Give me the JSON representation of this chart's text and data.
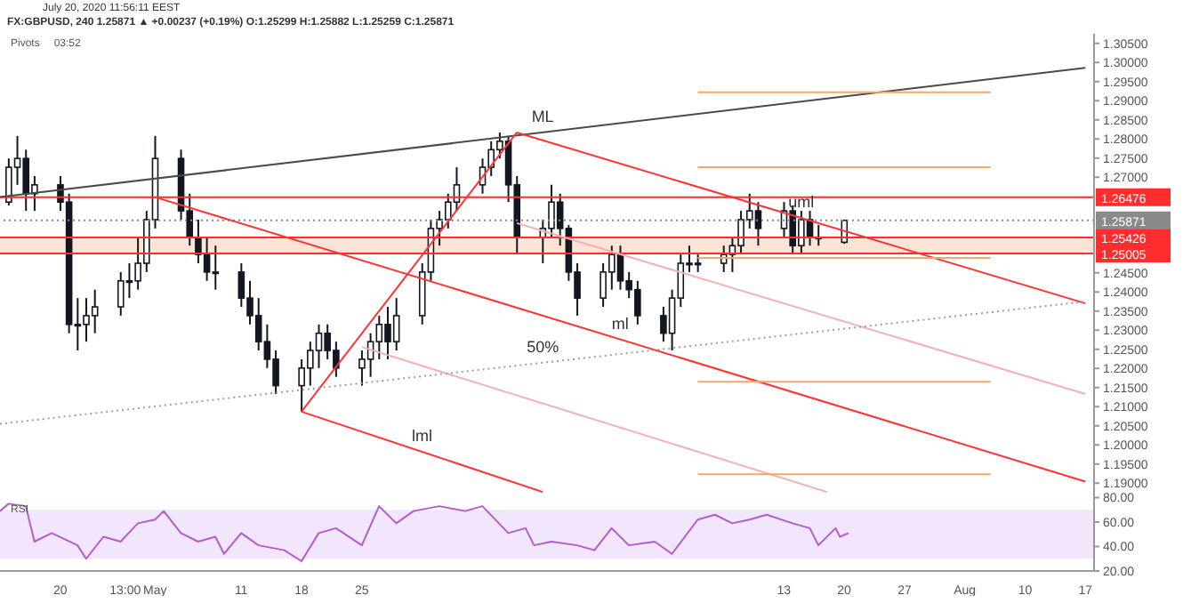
{
  "chart_data": [
    {
      "type": "candlestick",
      "title": "FX:GBPUSD, 240  1.25871 ▲ +0.00237 (+0.19%) O:1.25299 H:1.25882 L:1.25259 C:1.25871",
      "subtitle": "July 20, 2020 11:56:11 EEST",
      "color": "#131722",
      "x": [
        "2020-04-14",
        "2020-04-15",
        "2020-04-16",
        "2020-04-17",
        "2020-04-20",
        "2020-04-21",
        "2020-04-22",
        "2020-04-23",
        "2020-04-24",
        "2020-04-27",
        "2020-04-28",
        "2020-04-29",
        "2020-04-30",
        "2020-05-01",
        "2020-05-04",
        "2020-05-05",
        "2020-05-06",
        "2020-05-07",
        "2020-05-08",
        "2020-05-11",
        "2020-05-12",
        "2020-05-13",
        "2020-05-14",
        "2020-05-15",
        "2020-05-18",
        "2020-05-19",
        "2020-05-20",
        "2020-05-21",
        "2020-05-22",
        "2020-05-25",
        "2020-05-26",
        "2020-05-27",
        "2020-05-28",
        "2020-05-29",
        "2020-06-01",
        "2020-06-02",
        "2020-06-03",
        "2020-06-04",
        "2020-06-05",
        "2020-06-08",
        "2020-06-09",
        "2020-06-10",
        "2020-06-11",
        "2020-06-12",
        "2020-06-15",
        "2020-06-16",
        "2020-06-17",
        "2020-06-18",
        "2020-06-19",
        "2020-06-22",
        "2020-06-23",
        "2020-06-24",
        "2020-06-25",
        "2020-06-26",
        "2020-06-29",
        "2020-06-30",
        "2020-07-01",
        "2020-07-02",
        "2020-07-03",
        "2020-07-06",
        "2020-07-07",
        "2020-07-08",
        "2020-07-09",
        "2020-07-10",
        "2020-07-13",
        "2020-07-14",
        "2020-07-15",
        "2020-07-16",
        "2020-07-17",
        "2020-07-20"
      ],
      "ohlc": [
        [
          1.2635,
          1.2749,
          1.2626,
          1.2726
        ],
        [
          1.2726,
          1.2808,
          1.268,
          1.2749
        ],
        [
          1.2749,
          1.2772,
          1.2612,
          1.2657
        ],
        [
          1.2657,
          1.2703,
          1.2612,
          1.268
        ],
        [
          1.268,
          1.2703,
          1.2612,
          1.2635
        ],
        [
          1.2635,
          1.2657,
          1.2292,
          1.2315
        ],
        [
          1.2315,
          1.2384,
          1.2247,
          1.2315
        ],
        [
          1.2315,
          1.2384,
          1.227,
          1.2338
        ],
        [
          1.2338,
          1.2406,
          1.2292,
          1.2361
        ],
        [
          1.2361,
          1.2452,
          1.2338,
          1.2429
        ],
        [
          1.2429,
          1.2475,
          1.2384,
          1.2429
        ],
        [
          1.2429,
          1.2543,
          1.2406,
          1.2475
        ],
        [
          1.2475,
          1.2612,
          1.2452,
          1.2589
        ],
        [
          1.2589,
          1.2808,
          1.2566,
          1.2749
        ],
        [
          1.2749,
          1.2772,
          1.2589,
          1.2612
        ],
        [
          1.2612,
          1.2657,
          1.2521,
          1.2543
        ],
        [
          1.2543,
          1.2589,
          1.2475,
          1.2498
        ],
        [
          1.2498,
          1.2543,
          1.2429,
          1.2452
        ],
        [
          1.2452,
          1.2521,
          1.2406,
          1.2452
        ],
        [
          1.2452,
          1.2475,
          1.2361,
          1.2384
        ],
        [
          1.2384,
          1.2429,
          1.2315,
          1.2338
        ],
        [
          1.2338,
          1.2384,
          1.2247,
          1.227
        ],
        [
          1.227,
          1.2315,
          1.2201,
          1.2224
        ],
        [
          1.2224,
          1.2247,
          1.2133,
          1.2155
        ],
        [
          1.2155,
          1.2224,
          1.2087,
          1.2201
        ],
        [
          1.2201,
          1.227,
          1.2155,
          1.2247
        ],
        [
          1.2247,
          1.2315,
          1.2201,
          1.2292
        ],
        [
          1.2292,
          1.2315,
          1.2224,
          1.2247
        ],
        [
          1.2247,
          1.227,
          1.2178,
          1.2201
        ],
        [
          1.2201,
          1.2247,
          1.2155,
          1.2224
        ],
        [
          1.2224,
          1.2292,
          1.2178,
          1.227
        ],
        [
          1.227,
          1.2338,
          1.2224,
          1.2315
        ],
        [
          1.2315,
          1.2361,
          1.2224,
          1.227
        ],
        [
          1.227,
          1.2384,
          1.2247,
          1.2338
        ],
        [
          1.2338,
          1.2475,
          1.2315,
          1.2452
        ],
        [
          1.2452,
          1.2589,
          1.2429,
          1.2566
        ],
        [
          1.2566,
          1.2612,
          1.2521,
          1.2589
        ],
        [
          1.2589,
          1.2657,
          1.2566,
          1.2635
        ],
        [
          1.2635,
          1.2726,
          1.2612,
          1.268
        ],
        [
          1.268,
          1.2749,
          1.2657,
          1.2726
        ],
        [
          1.2726,
          1.2794,
          1.2703,
          1.2772
        ],
        [
          1.2772,
          1.2817,
          1.2749,
          1.2794
        ],
        [
          1.2794,
          1.2808,
          1.2635,
          1.268
        ],
        [
          1.268,
          1.2703,
          1.2498,
          1.2543
        ],
        [
          1.2543,
          1.2589,
          1.2475,
          1.2566
        ],
        [
          1.2566,
          1.268,
          1.2543,
          1.2635
        ],
        [
          1.2635,
          1.2657,
          1.2521,
          1.2566
        ],
        [
          1.2566,
          1.2575,
          1.2429,
          1.2452
        ],
        [
          1.2452,
          1.2475,
          1.2338,
          1.2384
        ],
        [
          1.2384,
          1.2475,
          1.2361,
          1.2452
        ],
        [
          1.2452,
          1.2521,
          1.2406,
          1.2498
        ],
        [
          1.2498,
          1.2521,
          1.2406,
          1.2429
        ],
        [
          1.2429,
          1.2452,
          1.2384,
          1.2406
        ],
        [
          1.2406,
          1.2429,
          1.2315,
          1.2338
        ],
        [
          1.2338,
          1.2361,
          1.227,
          1.2292
        ],
        [
          1.2292,
          1.2406,
          1.2247,
          1.2384
        ],
        [
          1.2384,
          1.2498,
          1.2361,
          1.2475
        ],
        [
          1.2475,
          1.2521,
          1.2452,
          1.2475
        ],
        [
          1.2475,
          1.2498,
          1.2452,
          1.2475
        ],
        [
          1.2475,
          1.2521,
          1.2452,
          1.2498
        ],
        [
          1.2498,
          1.2543,
          1.2452,
          1.2521
        ],
        [
          1.2521,
          1.2612,
          1.2498,
          1.2589
        ],
        [
          1.2589,
          1.2657,
          1.2566,
          1.2612
        ],
        [
          1.2612,
          1.2635,
          1.2521,
          1.2566
        ],
        [
          1.2566,
          1.2635,
          1.2543,
          1.2612
        ],
        [
          1.2612,
          1.2626,
          1.2498,
          1.2521
        ],
        [
          1.2521,
          1.2612,
          1.2498,
          1.2589
        ],
        [
          1.2589,
          1.2612,
          1.2521,
          1.2543
        ],
        [
          1.2543,
          1.2575,
          1.2521,
          1.2543
        ],
        [
          1.25299,
          1.25882,
          1.25259,
          1.25871
        ]
      ],
      "series": [
        {
          "type": "line",
          "name": "ML",
          "color": "#4a4a4a",
          "x": [
            "2020-04-13",
            "2020-08-17"
          ],
          "values": [
            1.2648,
            1.2986
          ]
        },
        {
          "type": "line",
          "name": "uml",
          "color": "#ff3333",
          "x": [
            "2020-06-12",
            "2020-08-17"
          ],
          "values": [
            1.2817,
            1.237
          ]
        },
        {
          "type": "line",
          "name": "ml",
          "color": "#ff3333",
          "x": [
            "2020-05-01",
            "2020-08-17"
          ],
          "values": [
            1.2648,
            1.1904
          ]
        },
        {
          "type": "line",
          "name": "lml",
          "color": "#ff3333",
          "x": [
            "2020-05-18",
            "2020-06-15"
          ],
          "values": [
            1.2087,
            1.1877
          ]
        },
        {
          "type": "line",
          "color": "#ff3333",
          "x": [
            "2020-05-18",
            "2020-06-12"
          ],
          "values": [
            1.2087,
            1.2817
          ]
        },
        {
          "type": "line",
          "color": "#f7b0b0",
          "x": [
            "2020-06-12",
            "2020-08-17"
          ],
          "values": [
            1.258,
            1.2133
          ]
        },
        {
          "type": "line",
          "color": "#f7b0b0",
          "x": [
            "2020-05-25",
            "2020-07-18"
          ],
          "values": [
            1.2256,
            1.1877
          ]
        },
        {
          "type": "line",
          "name": "50%",
          "color": "#9e9e9e",
          "line_style": "dotted",
          "x": [
            "2020-04-13",
            "2020-08-17"
          ],
          "values": [
            1.2055,
            1.2375
          ]
        },
        {
          "type": "line",
          "color": "#f5a66b",
          "x": [
            "2020-07-03",
            "2020-08-06"
          ],
          "values": [
            1.2922,
            1.2922
          ]
        },
        {
          "type": "line",
          "color": "#f5a66b",
          "x": [
            "2020-07-03",
            "2020-08-06"
          ],
          "values": [
            1.2726,
            1.2726
          ]
        },
        {
          "type": "line",
          "color": "#f5a66b",
          "x": [
            "2020-07-03",
            "2020-08-06"
          ],
          "values": [
            1.2489,
            1.2489
          ]
        },
        {
          "type": "line",
          "color": "#f5a66b",
          "x": [
            "2020-07-03",
            "2020-08-06"
          ],
          "values": [
            1.2165,
            1.2165
          ]
        },
        {
          "type": "line",
          "color": "#f5a66b",
          "x": [
            "2020-07-03",
            "2020-08-06"
          ],
          "values": [
            1.1923,
            1.1923
          ]
        }
      ],
      "ref_lines": [
        {
          "axis": "y",
          "value": 1.26476,
          "label": "1.26476",
          "color": "#ff2d2d"
        },
        {
          "axis": "y",
          "value": 1.25426,
          "label": "1.25426",
          "color": "#ff2d2d"
        },
        {
          "axis": "y",
          "value": 1.25005,
          "label": "1.25005",
          "color": "#ff2d2d"
        },
        {
          "axis": "y",
          "value": 1.25871,
          "label": "1.25871",
          "color": "#8a8a8a",
          "line_style": "dotted"
        }
      ],
      "bands": [
        {
          "axis": "y",
          "from": 1.25005,
          "to": 1.25426,
          "color": "#fbe4d6"
        }
      ],
      "annotations": [
        "Pivots",
        "03:52"
      ],
      "xlim": [
        "2020-04-13",
        "2020-08-18"
      ],
      "ylim": [
        1.1875,
        1.3075
      ],
      "yticks": [
        {
          "value": 1.19,
          "label": "1.19000"
        },
        {
          "value": 1.195,
          "label": "1.19500"
        },
        {
          "value": 1.2,
          "label": "1.20000"
        },
        {
          "value": 1.205,
          "label": "1.20500"
        },
        {
          "value": 1.21,
          "label": "1.21000"
        },
        {
          "value": 1.215,
          "label": "1.21500"
        },
        {
          "value": 1.22,
          "label": "1.22000"
        },
        {
          "value": 1.225,
          "label": "1.22500"
        },
        {
          "value": 1.23,
          "label": "1.23000"
        },
        {
          "value": 1.235,
          "label": "1.23500"
        },
        {
          "value": 1.24,
          "label": "1.24000"
        },
        {
          "value": 1.245,
          "label": "1.24500"
        },
        {
          "value": 1.27,
          "label": "1.27000"
        },
        {
          "value": 1.275,
          "label": "1.27500"
        },
        {
          "value": 1.28,
          "label": "1.28000"
        },
        {
          "value": 1.285,
          "label": "1.28500"
        },
        {
          "value": 1.29,
          "label": "1.29000"
        },
        {
          "value": 1.295,
          "label": "1.29500"
        },
        {
          "value": 1.3,
          "label": "1.30000"
        },
        {
          "value": 1.305,
          "label": "1.30500"
        }
      ],
      "tick_labels": "y"
    },
    {
      "type": "line",
      "series": [
        {
          "color": "#b45bd0",
          "x": [
            "2020-04-13",
            "2020-04-14",
            "2020-04-16",
            "2020-04-17",
            "2020-04-19",
            "2020-04-22",
            "2020-04-23",
            "2020-04-25",
            "2020-04-27",
            "2020-04-29",
            "2020-05-01",
            "2020-05-02",
            "2020-05-04",
            "2020-05-06",
            "2020-05-08",
            "2020-05-09",
            "2020-05-11",
            "2020-05-13",
            "2020-05-16",
            "2020-05-18",
            "2020-05-20",
            "2020-05-22",
            "2020-05-25",
            "2020-05-27",
            "2020-05-29",
            "2020-05-31",
            "2020-06-03",
            "2020-06-06",
            "2020-06-08",
            "2020-06-11",
            "2020-06-13",
            "2020-06-14",
            "2020-06-16",
            "2020-06-19",
            "2020-06-21",
            "2020-06-23",
            "2020-06-25",
            "2020-06-28",
            "2020-06-30",
            "2020-07-03",
            "2020-07-05",
            "2020-07-07",
            "2020-07-09",
            "2020-07-11",
            "2020-07-14",
            "2020-07-16",
            "2020-07-17",
            "2020-07-19",
            "2020-07-19T12:00",
            "2020-07-20T12:00"
          ],
          "values": [
            69,
            75,
            73,
            44,
            51,
            41,
            30,
            48,
            44,
            59,
            62,
            69,
            51,
            44,
            48,
            34,
            51,
            41,
            37,
            28,
            51,
            55,
            41,
            73,
            59,
            69,
            73,
            69,
            73,
            51,
            55,
            41,
            44,
            41,
            37,
            55,
            41,
            44,
            34,
            62,
            66,
            59,
            62,
            66,
            59,
            55,
            41,
            55,
            48,
            51
          ]
        }
      ],
      "bands": [
        {
          "axis": "y",
          "from": 30,
          "to": 70,
          "color": "#f1e6fc"
        }
      ],
      "annotations": [
        "RSI"
      ],
      "xlim": [
        "2020-04-13",
        "2020-08-18"
      ],
      "xticks": [
        {
          "value": "2020-04-20",
          "label": "20"
        },
        {
          "value": "2020-04-27T13:00",
          "label": "13:00"
        },
        {
          "value": "2020-05-01",
          "label": "May"
        },
        {
          "value": "2020-05-11",
          "label": "11"
        },
        {
          "value": "2020-05-18",
          "label": "18"
        },
        {
          "value": "2020-05-25",
          "label": "25"
        },
        {
          "value": "2020-07-13",
          "label": "13"
        },
        {
          "value": "2020-07-20",
          "label": "20"
        },
        {
          "value": "2020-07-27",
          "label": "27"
        },
        {
          "value": "2020-08-03",
          "label": "Aug"
        },
        {
          "value": "2020-08-10",
          "label": "10"
        },
        {
          "value": "2020-08-17",
          "label": "17"
        }
      ],
      "ylim": [
        20,
        84
      ],
      "yticks": [
        {
          "value": 20,
          "label": "20.00"
        },
        {
          "value": 40,
          "label": "40.00"
        },
        {
          "value": 60,
          "label": "60.00"
        },
        {
          "value": 80,
          "label": "80.00"
        }
      ]
    }
  ]
}
